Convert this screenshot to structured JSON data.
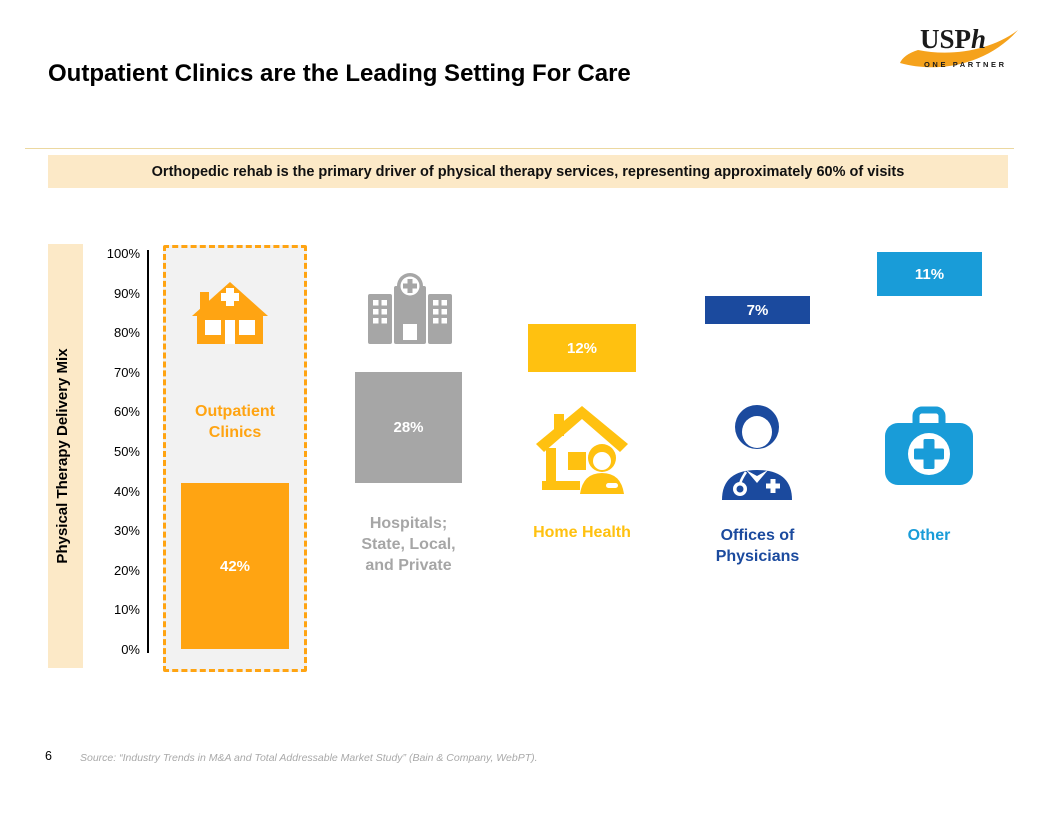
{
  "logo": {
    "name": "USPh",
    "tagline": "ONE PARTNER",
    "swoosh_color": "#f5a21c"
  },
  "title": "Outpatient Clinics are the Leading Setting For Care",
  "banner": {
    "text": "Orthopedic rehab is the primary driver of physical therapy services, representing approximately 60% of visits",
    "bg_color": "#fce9c7"
  },
  "chart_data": {
    "type": "bar",
    "variant": "waterfall-stacked-percentages",
    "ylabel": "Physical Therapy Delivery Mix",
    "ylim": [
      0,
      100
    ],
    "yticks": [
      "100%",
      "90%",
      "80%",
      "70%",
      "60%",
      "50%",
      "40%",
      "30%",
      "20%",
      "10%",
      "0%"
    ],
    "categories": [
      "Outpatient Clinics",
      "Hospitals; State, Local, and Private",
      "Home Health",
      "Offices of Physicians",
      "Other"
    ],
    "values": [
      42,
      28,
      12,
      7,
      11
    ],
    "value_labels": [
      "42%",
      "28%",
      "12%",
      "7%",
      "11%"
    ],
    "colors": [
      "#ffa412",
      "#a6a6a6",
      "#ffc110",
      "#1b4a9e",
      "#199cd8"
    ],
    "icons": [
      "clinic-house-icon",
      "hospital-icon",
      "home-nurse-icon",
      "doctor-icon",
      "first-aid-kit-icon"
    ],
    "highlighted_category": "Outpatient Clinics",
    "grid": false,
    "legend": false
  },
  "footer": {
    "page_number": "6",
    "source": "Source: “Industry Trends in M&A and Total Addressable Market Study” (Bain & Company, WebPT)."
  }
}
